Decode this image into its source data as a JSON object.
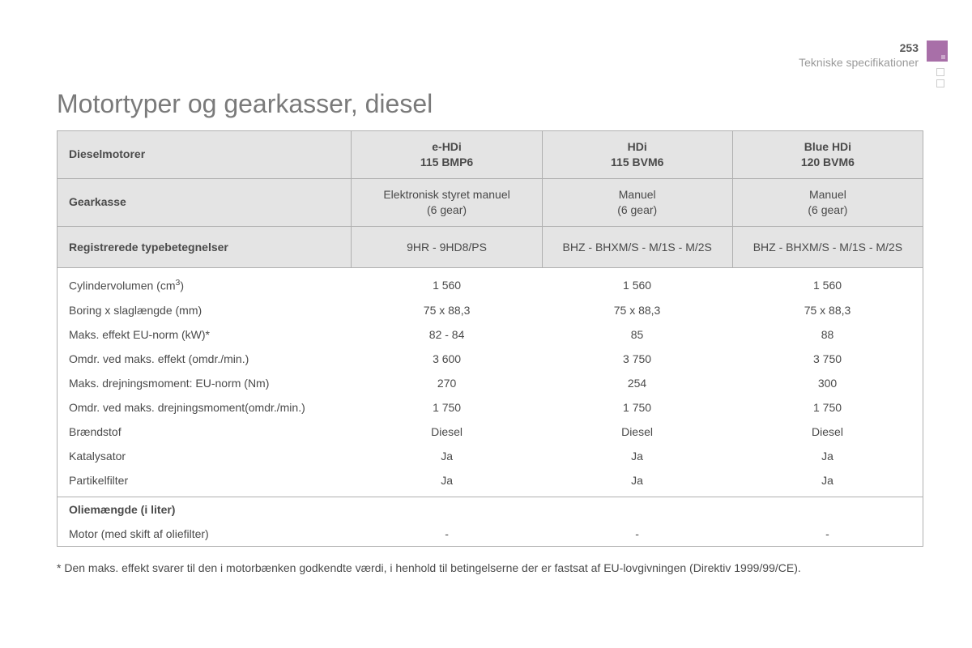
{
  "page": {
    "number": "253",
    "section": "Tekniske specifikationer",
    "title": "Motortyper og gearkasser, diesel"
  },
  "marker": {
    "color": "#a86fa8",
    "small_square_border": "#cccccc"
  },
  "table": {
    "columns": [
      "e-HDi\n115 BMP6",
      "HDi\n115 BVM6",
      "Blue HDi\n120 BVM6"
    ],
    "column_widths_pct": [
      34,
      22,
      22,
      22
    ],
    "border_color": "#b0b0b0",
    "header_bg": "#e4e4e4",
    "header_rows": [
      {
        "label": "Dieselmotorer",
        "values": [
          "e-HDi\n115 BMP6",
          "HDi\n115 BVM6",
          "Blue HDi\n120 BVM6"
        ]
      },
      {
        "label": "Gearkasse",
        "values": [
          "Elektronisk styret manuel\n(6 gear)",
          "Manuel\n(6 gear)",
          "Manuel\n(6 gear)"
        ]
      },
      {
        "label": "Registrerede typebetegnelser",
        "values": [
          "9HR - 9HD8/PS",
          "BHZ - BHXM/S - M/1S - M/2S",
          "BHZ - BHXM/S - M/1S - M/2S"
        ]
      }
    ],
    "spec_rows": [
      {
        "label": "Cylindervolumen (cm³)",
        "values": [
          "1 560",
          "1 560",
          "1 560"
        ]
      },
      {
        "label": "Boring x slaglængde (mm)",
        "values": [
          "75 x 88,3",
          "75 x 88,3",
          "75 x 88,3"
        ]
      },
      {
        "label": "Maks. effekt EU-norm (kW)*",
        "values": [
          "82 - 84",
          "85",
          "88"
        ]
      },
      {
        "label": "Omdr. ved maks. effekt (omdr./min.)",
        "values": [
          "3 600",
          "3 750",
          "3 750"
        ]
      },
      {
        "label": "Maks. drejningsmoment: EU-norm (Nm)",
        "values": [
          "270",
          "254",
          "300"
        ]
      },
      {
        "label": "Omdr. ved maks. drejningsmoment(omdr./min.)",
        "values": [
          "1 750",
          "1 750",
          "1 750"
        ]
      },
      {
        "label": "Brændstof",
        "values": [
          "Diesel",
          "Diesel",
          "Diesel"
        ]
      },
      {
        "label": "Katalysator",
        "values": [
          "Ja",
          "Ja",
          "Ja"
        ]
      },
      {
        "label": "Partikelfilter",
        "values": [
          "Ja",
          "Ja",
          "Ja"
        ]
      }
    ],
    "oil_section": {
      "label": "Oliemængde (i liter)",
      "row": {
        "label": "Motor (med skift af oliefilter)",
        "values": [
          "-",
          "-",
          "-"
        ]
      }
    }
  },
  "footnote": "* Den maks. effekt svarer til den i motorbænken godkendte værdi, i henhold til betingelserne der er fastsat af EU-lovgivningen (Direktiv 1999/99/CE)."
}
